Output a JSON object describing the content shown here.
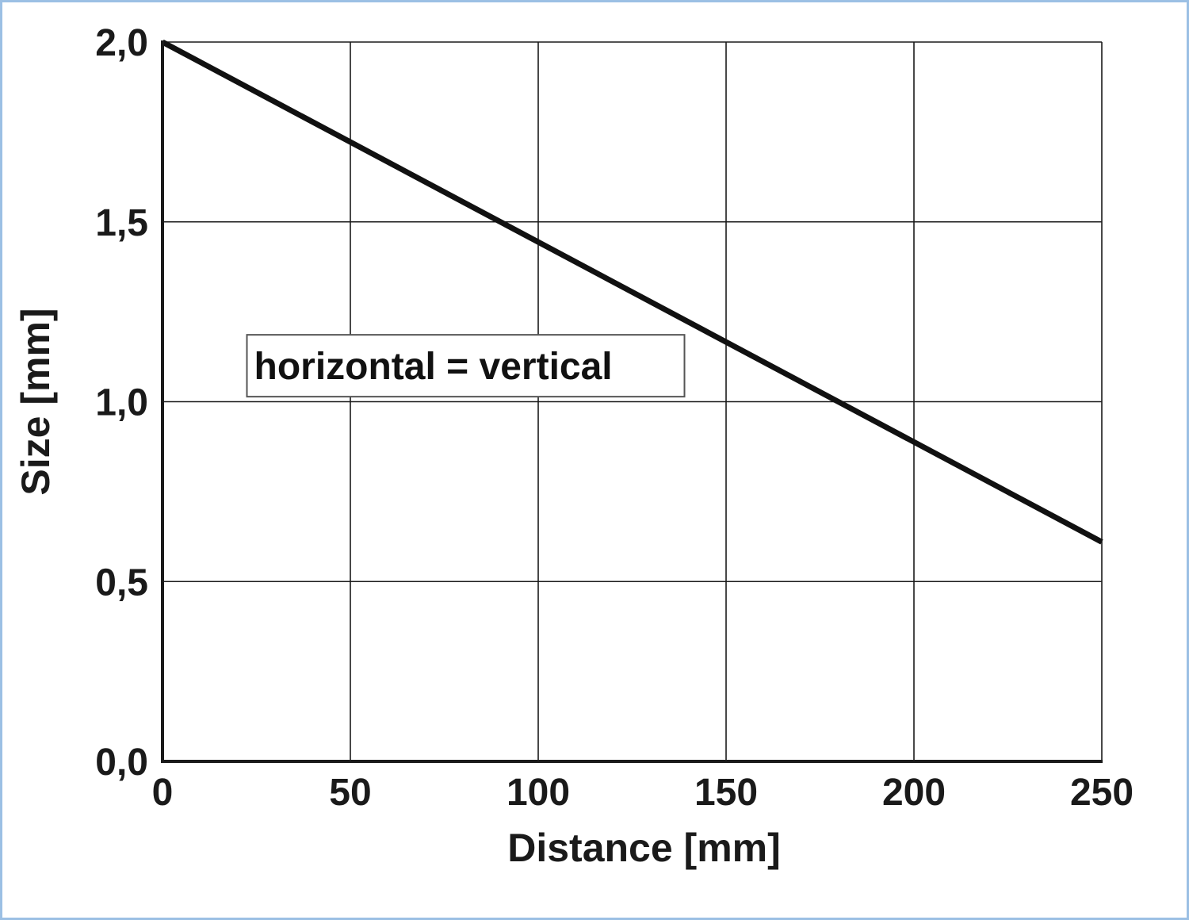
{
  "chart_data": {
    "type": "line",
    "xlabel": "Distance [mm]",
    "ylabel": "Size [mm]",
    "xlim": [
      0,
      250
    ],
    "ylim": [
      0.0,
      2.0
    ],
    "x_ticks": [
      0,
      50,
      100,
      150,
      200,
      250
    ],
    "x_tick_labels": [
      "0",
      "50",
      "100",
      "150",
      "200",
      "250"
    ],
    "y_ticks": [
      0.0,
      0.5,
      1.0,
      1.5,
      2.0
    ],
    "y_tick_labels": [
      "0,0",
      "0,5",
      "1,0",
      "1,5",
      "2,0"
    ],
    "grid": true,
    "series": [
      {
        "x": [
          0,
          250
        ],
        "y": [
          2.0,
          0.61
        ],
        "color": "#111111"
      }
    ],
    "annotations": [
      {
        "text": "horizontal = vertical",
        "x": 25,
        "y": 1.1
      }
    ]
  },
  "colors": {
    "frame_border": "#9cc0e4",
    "grid": "#1a1a1a",
    "line": "#111111",
    "annotation_border": "#555555"
  }
}
